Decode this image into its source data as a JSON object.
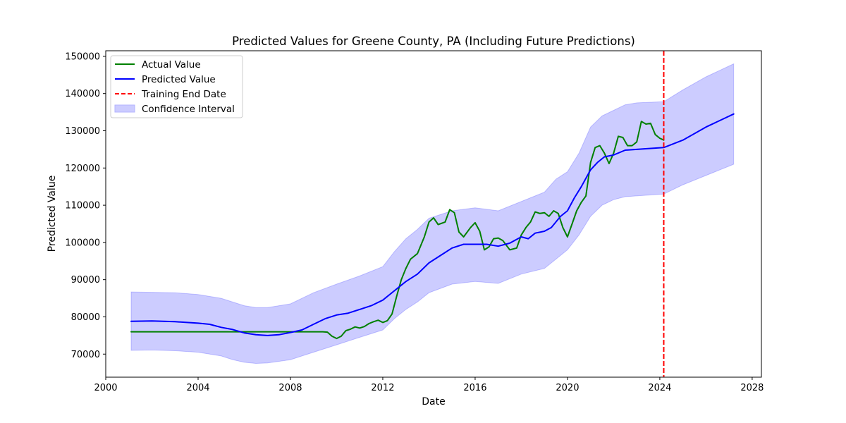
{
  "chart_data": {
    "type": "line",
    "title": "Predicted Values for Greene County, PA (Including Future Predictions)",
    "xlabel": "Date",
    "ylabel": "Predicted Value",
    "xlim": [
      2000.0,
      2028.4
    ],
    "ylim": [
      63800,
      151500
    ],
    "xticks": [
      2000,
      2004,
      2008,
      2012,
      2016,
      2020,
      2024,
      2028
    ],
    "yticks": [
      70000,
      80000,
      90000,
      100000,
      110000,
      120000,
      130000,
      140000,
      150000
    ],
    "grid": false,
    "legend_position": "upper-left",
    "legend": [
      {
        "label": "Actual Value",
        "kind": "line",
        "color": "#008000"
      },
      {
        "label": "Predicted Value",
        "kind": "line",
        "color": "#0000ff"
      },
      {
        "label": "Training End Date",
        "kind": "dashed",
        "color": "#ff0000"
      },
      {
        "label": "Confidence Interval",
        "kind": "patch",
        "color": "#ccccff"
      }
    ],
    "training_end_date": 2024.17,
    "series": [
      {
        "name": "Actual Value",
        "color": "#008000",
        "x": [
          2001.1,
          2002,
          2003,
          2004,
          2005,
          2006,
          2007,
          2008,
          2009,
          2009.4,
          2009.6,
          2009.8,
          2010.0,
          2010.2,
          2010.4,
          2010.6,
          2010.8,
          2011.0,
          2011.2,
          2011.4,
          2011.6,
          2011.8,
          2012.0,
          2012.2,
          2012.4,
          2012.6,
          2012.8,
          2013.0,
          2013.2,
          2013.5,
          2013.8,
          2014.0,
          2014.2,
          2014.4,
          2014.7,
          2014.9,
          2015.1,
          2015.3,
          2015.5,
          2015.8,
          2016.0,
          2016.2,
          2016.4,
          2016.6,
          2016.8,
          2017.0,
          2017.2,
          2017.5,
          2017.8,
          2018.0,
          2018.2,
          2018.4,
          2018.6,
          2018.8,
          2019.0,
          2019.2,
          2019.4,
          2019.6,
          2019.8,
          2020.0,
          2020.2,
          2020.4,
          2020.6,
          2020.8,
          2021.0,
          2021.2,
          2021.4,
          2021.6,
          2021.8,
          2022.0,
          2022.2,
          2022.4,
          2022.6,
          2022.8,
          2023.0,
          2023.2,
          2023.4,
          2023.6,
          2023.8,
          2024.0,
          2024.17
        ],
        "y": [
          76000,
          76000,
          76000,
          76000,
          76000,
          76000,
          76000,
          76000,
          76000,
          76000,
          75900,
          74800,
          74200,
          74800,
          76300,
          76700,
          77300,
          77000,
          77400,
          78200,
          78700,
          79100,
          78500,
          79000,
          80800,
          85500,
          90000,
          93000,
          95500,
          97000,
          101500,
          105500,
          106600,
          104800,
          105500,
          108800,
          108000,
          102800,
          101500,
          104000,
          105300,
          103000,
          98000,
          98800,
          101000,
          101200,
          100500,
          98000,
          98500,
          102000,
          104000,
          105500,
          108200,
          107800,
          108000,
          107000,
          108500,
          107800,
          104000,
          101500,
          105000,
          108500,
          110800,
          112500,
          121500,
          125500,
          126000,
          124000,
          121200,
          124000,
          128500,
          128200,
          126000,
          126000,
          127000,
          132500,
          131800,
          132000,
          129000,
          128000,
          127500
        ]
      },
      {
        "name": "Predicted Value",
        "color": "#0000ff",
        "x": [
          2001.1,
          2002,
          2003,
          2004,
          2004.5,
          2005.0,
          2005.5,
          2006.0,
          2006.5,
          2007.0,
          2007.5,
          2008.0,
          2008.5,
          2009.0,
          2009.5,
          2010.0,
          2010.5,
          2011.0,
          2011.5,
          2012.0,
          2012.5,
          2013.0,
          2013.5,
          2014.0,
          2014.5,
          2015.0,
          2015.5,
          2016.0,
          2016.5,
          2017.0,
          2017.5,
          2018.0,
          2018.3,
          2018.6,
          2019.0,
          2019.3,
          2019.7,
          2020.0,
          2020.3,
          2020.6,
          2021.0,
          2021.3,
          2021.6,
          2022.0,
          2022.5,
          2023.0,
          2023.5,
          2024.17,
          2025.0,
          2026.0,
          2027.2
        ],
        "y": [
          78800,
          78900,
          78700,
          78300,
          78000,
          77200,
          76600,
          75700,
          75200,
          75000,
          75200,
          75800,
          76500,
          78000,
          79500,
          80500,
          81000,
          82000,
          83000,
          84500,
          87000,
          89500,
          91500,
          94500,
          96500,
          98500,
          99500,
          99500,
          99500,
          99000,
          99800,
          101500,
          101000,
          102500,
          103000,
          104000,
          107000,
          108500,
          112000,
          115000,
          119500,
          121500,
          123000,
          123500,
          124800,
          125000,
          125200,
          125500,
          127500,
          131000,
          134500
        ]
      }
    ],
    "confidence_interval": {
      "name": "Confidence Interval",
      "color": "#0000ff",
      "opacity": 0.2,
      "x": [
        2001.1,
        2002,
        2003,
        2004,
        2005.0,
        2005.5,
        2006.0,
        2006.5,
        2007.0,
        2008.0,
        2009.0,
        2010.0,
        2011.0,
        2012.0,
        2012.5,
        2013.0,
        2013.5,
        2014.0,
        2015.0,
        2016.0,
        2017.0,
        2018.0,
        2019.0,
        2019.5,
        2020.0,
        2020.5,
        2021.0,
        2021.5,
        2022.0,
        2022.5,
        2023.0,
        2024.17,
        2025.0,
        2026.0,
        2027.2
      ],
      "upper": [
        86700,
        86600,
        86500,
        86000,
        85000,
        84000,
        83000,
        82500,
        82500,
        83500,
        86500,
        88800,
        91000,
        93500,
        97500,
        101000,
        103500,
        106500,
        108500,
        109300,
        108500,
        111000,
        113500,
        117000,
        119000,
        124000,
        131000,
        134000,
        135500,
        137000,
        137500,
        137800,
        141000,
        144500,
        148000
      ],
      "lower": [
        71000,
        71100,
        70900,
        70500,
        69500,
        68500,
        67800,
        67500,
        67600,
        68500,
        70500,
        72500,
        74500,
        76500,
        79500,
        82000,
        84000,
        86500,
        88800,
        89500,
        89000,
        91500,
        93000,
        95500,
        98000,
        102000,
        107000,
        110000,
        111500,
        112300,
        112500,
        113000,
        115500,
        118000,
        121000
      ]
    }
  }
}
